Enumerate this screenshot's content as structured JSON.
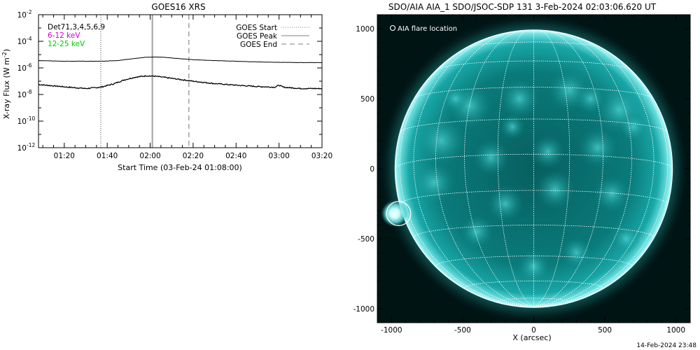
{
  "chart_data": [
    {
      "type": "line",
      "title": "GOES16 XRS",
      "xlabel": "Start Time (03-Feb-24 01:08:00)",
      "ylabel": "X-ray Flux (W m⁻²)",
      "ylabel_main": "X-ray Flux (W m",
      "ylabel_unit": "-2",
      "yscale": "log",
      "ylim_exp": [
        -12,
        -2
      ],
      "xlim_min": [
        68,
        200
      ],
      "x_ticks": [
        {
          "m": 80,
          "label": "01:20"
        },
        {
          "m": 100,
          "label": "01:40"
        },
        {
          "m": 120,
          "label": "02:00"
        },
        {
          "m": 140,
          "label": "02:20"
        },
        {
          "m": 160,
          "label": "02:40"
        },
        {
          "m": 180,
          "label": "03:00"
        },
        {
          "m": 200,
          "label": "03:20"
        }
      ],
      "y_ticks": [
        {
          "e": -2,
          "base": "10",
          "exp": "-2"
        },
        {
          "e": -4,
          "base": "10",
          "exp": "-4"
        },
        {
          "e": -6,
          "base": "10",
          "exp": "-6"
        },
        {
          "e": -8,
          "base": "10",
          "exp": "-8"
        },
        {
          "e": -10,
          "base": "10",
          "exp": "-10"
        },
        {
          "e": -12,
          "base": "10",
          "exp": "-12"
        }
      ],
      "legend_left": [
        {
          "text": "Det71,3,4,5,6,9",
          "color": "#000000"
        },
        {
          "text": "6-12 keV",
          "color": "#cc00cc"
        },
        {
          "text": "12-25 keV",
          "color": "#00cc00"
        }
      ],
      "legend_right": [
        {
          "text": "GOES Start",
          "style": "dotted"
        },
        {
          "text": "GOES Peak",
          "style": "solid"
        },
        {
          "text": "GOES End",
          "style": "dashed"
        }
      ],
      "event_lines": [
        {
          "name": "goes-start",
          "m": 97,
          "style": "dotted",
          "color": "#808080"
        },
        {
          "name": "goes-peak",
          "m": 121,
          "style": "solid",
          "color": "#a0a0a0"
        },
        {
          "name": "goes-end",
          "m": 138,
          "style": "dashed",
          "color": "#a0a0a0"
        }
      ],
      "series": [
        {
          "name": "long",
          "color": "#000000",
          "x": [
            68,
            80,
            90,
            97,
            105,
            112,
            118,
            122,
            126,
            132,
            140,
            150,
            160,
            170,
            180,
            190,
            200
          ],
          "y_exp": [
            -5.45,
            -5.5,
            -5.5,
            -5.5,
            -5.45,
            -5.3,
            -5.2,
            -5.18,
            -5.2,
            -5.28,
            -5.38,
            -5.45,
            -5.5,
            -5.55,
            -5.58,
            -5.6,
            -5.6
          ]
        },
        {
          "name": "short",
          "color": "#000000",
          "x": [
            68,
            75,
            82,
            90,
            97,
            103,
            108,
            113,
            118,
            122,
            127,
            133,
            140,
            150,
            160,
            170,
            178,
            180,
            182,
            190,
            200
          ],
          "y_exp": [
            -7.25,
            -7.35,
            -7.45,
            -7.55,
            -7.45,
            -7.2,
            -6.9,
            -6.7,
            -6.6,
            -6.62,
            -6.72,
            -6.85,
            -7.0,
            -7.18,
            -7.3,
            -7.4,
            -7.45,
            -7.3,
            -7.45,
            -7.55,
            -7.55
          ]
        }
      ]
    },
    {
      "type": "heatmap",
      "title": "SDO/AIA AIA_1 SDO/JSOC-SDP 131  3-Feb-2024 02:03:06.620 UT",
      "xlabel": "X (arcsec)",
      "xlim": [
        -1100,
        1100
      ],
      "ylim": [
        -1100,
        1100
      ],
      "x_ticks": [
        -1000,
        -500,
        0,
        500,
        1000
      ],
      "y_ticks": [
        1000,
        500,
        0,
        -500,
        -1000
      ],
      "x_tick_labels": [
        "-1000",
        "-500",
        "0",
        "500",
        "1000"
      ],
      "y_tick_labels": [
        "1000",
        "500",
        "0",
        "-500",
        "-1000"
      ],
      "annotation": "AIA flare location",
      "solar_radius_arcsec": 975,
      "flare": {
        "x": -950,
        "y": -320,
        "r_arcsec": 85
      },
      "colors": {
        "background": "#001414",
        "disk": "#0a8a8a",
        "limb": "#aaf5f5",
        "grid": "#ffffff"
      }
    }
  ],
  "footer": {
    "timestamp": "14-Feb-2024 23:48"
  }
}
